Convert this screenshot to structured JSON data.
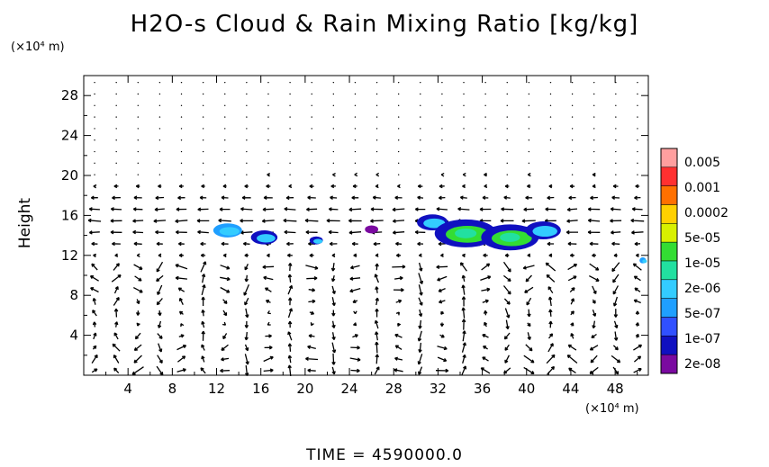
{
  "chart_data": {
    "type": "heatmap",
    "title": "H2O-s Cloud & Rain Mixing Ratio [kg/kg]",
    "ylabel": "Height",
    "y_unit": "(×10⁴ m)",
    "x_unit": "(×10⁴ m)",
    "xlim": [
      0,
      51
    ],
    "ylim": [
      0,
      30
    ],
    "x_ticks": [
      4,
      8,
      12,
      16,
      20,
      24,
      28,
      32,
      36,
      40,
      44,
      48
    ],
    "y_ticks": [
      4,
      8,
      12,
      16,
      20,
      24,
      28
    ],
    "colorbar": {
      "labels": [
        "0.005",
        "0.001",
        "0.0002",
        "5e-05",
        "1e-05",
        "2e-06",
        "5e-07",
        "1e-07",
        "2e-08"
      ],
      "colors": [
        "#ff9f9f",
        "#ff3030",
        "#ff7000",
        "#ffd000",
        "#d8f000",
        "#33dd33",
        "#22e0a0",
        "#33ccff",
        "#1f9fff",
        "#3050ff",
        "#1010c0",
        "#7a0aa0"
      ]
    },
    "cloud_regions": [
      {
        "x": 13,
        "y": 14.5,
        "level": "5e-07"
      },
      {
        "x": 16.3,
        "y": 13.8,
        "level": "1e-07"
      },
      {
        "x": 21,
        "y": 13.5,
        "level": "1e-07"
      },
      {
        "x": 26,
        "y": 14.6,
        "level": "2e-08"
      },
      {
        "x": 31.5,
        "y": 15.3,
        "level": "1e-07"
      },
      {
        "x": 34.5,
        "y": 14.2,
        "level": "1e-05"
      },
      {
        "x": 38.5,
        "y": 13.8,
        "level": "1e-05"
      },
      {
        "x": 41.5,
        "y": 14.5,
        "level": "1e-07"
      },
      {
        "x": 50.5,
        "y": 11.5,
        "level": "5e-07"
      }
    ],
    "grid": false,
    "legend": "right"
  },
  "labels": {
    "time": "TIME  =  4590000.0"
  }
}
